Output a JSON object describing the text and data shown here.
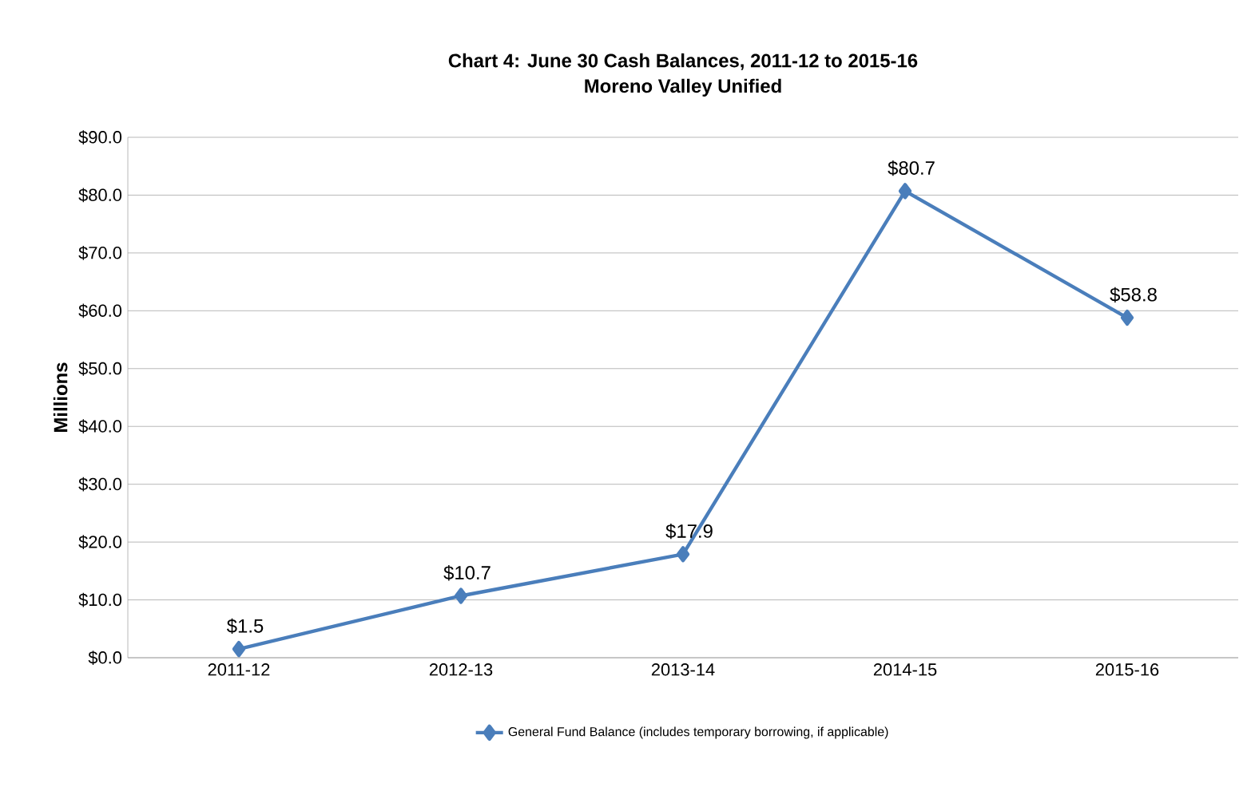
{
  "chart_data": {
    "type": "line",
    "title": "Chart 4: June 30 Cash Balances, 2011-12 to 2015-16",
    "subtitle": "Moreno Valley Unified",
    "ylabel": "Millions",
    "categories": [
      "2011-12",
      "2012-13",
      "2013-14",
      "2014-15",
      "2015-16"
    ],
    "series": [
      {
        "name": "General Fund Balance (includes temporary borrowing, if applicable)",
        "color": "#4a7ebb",
        "values": [
          1.5,
          10.7,
          17.9,
          80.7,
          58.8
        ],
        "value_labels": [
          "$1.5",
          "$10.7",
          "$17.9",
          "$80.7",
          "$58.8"
        ]
      }
    ],
    "ylim": [
      0,
      90
    ],
    "yticks": [
      {
        "value": 0,
        "label": "$0.0"
      },
      {
        "value": 10,
        "label": "$10.0"
      },
      {
        "value": 20,
        "label": "$20.0"
      },
      {
        "value": 30,
        "label": "$30.0"
      },
      {
        "value": 40,
        "label": "$40.0"
      },
      {
        "value": 50,
        "label": "$50.0"
      },
      {
        "value": 60,
        "label": "$60.0"
      },
      {
        "value": 70,
        "label": "$70.0"
      },
      {
        "value": 80,
        "label": "$80.0"
      },
      {
        "value": 90,
        "label": "$90.0"
      }
    ],
    "grid": "y",
    "legend": "bottom",
    "marker": "diamond",
    "line_style": "solid"
  }
}
